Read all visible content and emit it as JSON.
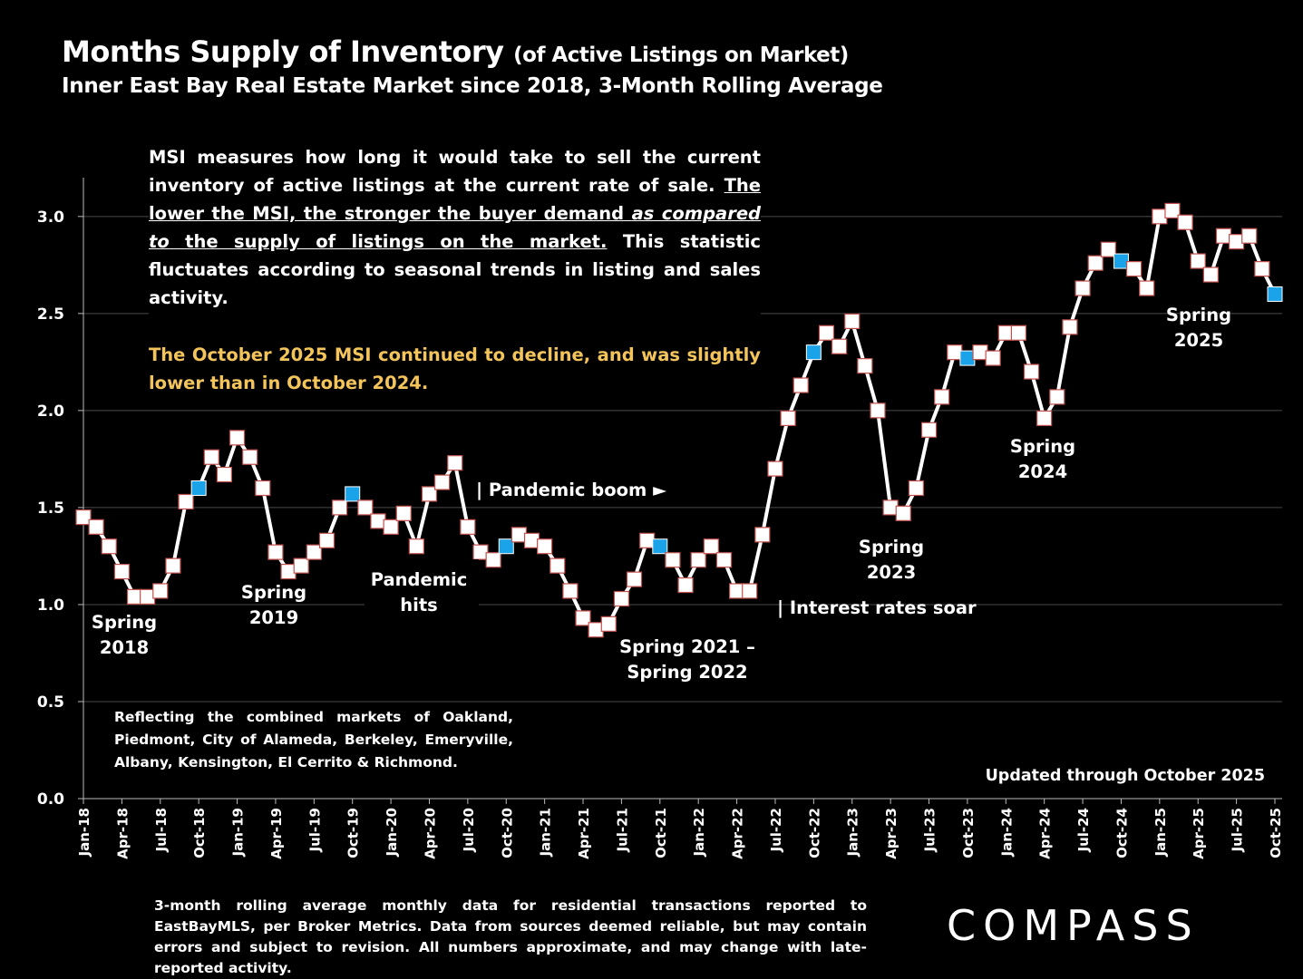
{
  "header": {
    "title": "Months Supply of Inventory",
    "title_sub": "(of Active Listings on Market)",
    "subtitle": "Inner East Bay Real Estate Market since 2018, 3-Month Rolling Average"
  },
  "note": {
    "p1_a": "MSI measures how long it would take to sell the current inventory of active listings at the current rate of sale. ",
    "p1_u1": "The lower the MSI, the stronger the buyer demand ",
    "p1_u_italic": "as compared to",
    "p1_u2": " the supply of listings on the market.",
    "p1_b": " This statistic fluctuates according to seasonal trends in listing and sales activity.",
    "highlight": "The October 2025 MSI continued to decline, and was slightly lower than in October 2024."
  },
  "markets_note": "Reflecting the combined markets of Oakland, Piedmont, City of Alameda, Berkeley, Emeryville, Albany, Kensington, El Cerrito & Richmond.",
  "updated": "Updated through October 2025",
  "footnote": "3-month rolling average monthly data for residential transactions reported to EastBayMLS, per Broker Metrics. Data from sources deemed reliable, but may contain errors and subject to revision. All numbers approximate, and may change with late-reported activity.",
  "logo": "COMPASS",
  "colors": {
    "background": "#000000",
    "line": "#ffffff",
    "marker_fill": "#ffffff",
    "marker_edge": "#c0504d",
    "october_marker": "#1aa3e8",
    "highlight_text": "#f2c45a"
  },
  "chart_data": {
    "type": "line",
    "ylim": [
      0,
      3.2
    ],
    "yticks": [
      "0.0",
      "0.5",
      "1.0",
      "1.5",
      "2.0",
      "2.5",
      "3.0"
    ],
    "grid": true,
    "x_tick_labels": [
      "Jan-18",
      "Apr-18",
      "Jul-18",
      "Oct-18",
      "Jan-19",
      "Apr-19",
      "Jul-19",
      "Oct-19",
      "Jan-20",
      "Apr-20",
      "Jul-20",
      "Oct-20",
      "Jan-21",
      "Apr-21",
      "Jul-21",
      "Oct-21",
      "Jan-22",
      "Apr-22",
      "Jul-22",
      "Oct-22",
      "Jan-23",
      "Apr-23",
      "Jul-23",
      "Oct-23",
      "Jan-24",
      "Apr-24",
      "Jul-24",
      "Oct-24",
      "Jan-25",
      "Apr-25",
      "Jul-25",
      "Oct-25"
    ],
    "series": [
      {
        "values": [
          1.45,
          1.4,
          1.3,
          1.17,
          1.04,
          1.04,
          1.07,
          1.2,
          1.53,
          1.6,
          1.76,
          1.67,
          1.86,
          1.76,
          1.6,
          1.27,
          1.17,
          1.2,
          1.27,
          1.33,
          1.5,
          1.57,
          1.5,
          1.43,
          1.4,
          1.47,
          1.3,
          1.57,
          1.63,
          1.73,
          1.4,
          1.27,
          1.23,
          1.3,
          1.36,
          1.33,
          1.3,
          1.2,
          1.07,
          0.93,
          0.87,
          0.9,
          1.03,
          1.13,
          1.33,
          1.3,
          1.23,
          1.1,
          1.23,
          1.3,
          1.23,
          1.07,
          1.07,
          1.36,
          1.7,
          1.96,
          2.13,
          2.3,
          2.4,
          2.33,
          2.46,
          2.23,
          2.0,
          1.5,
          1.47,
          1.6,
          1.9,
          2.07,
          2.3,
          2.27,
          2.3,
          2.27,
          2.4,
          2.4,
          2.2,
          1.96,
          2.07,
          2.43,
          2.63,
          2.76,
          2.83,
          2.77,
          2.73,
          2.63,
          3.0,
          3.03,
          2.97,
          2.77,
          2.7,
          2.9,
          2.87,
          2.9,
          2.73,
          2.6
        ],
        "highlight_months": [
          "Oct-18",
          "Oct-19",
          "Oct-20",
          "Oct-21",
          "Oct-22",
          "Oct-23",
          "Oct-24",
          "Oct-25"
        ]
      }
    ],
    "annotations": [
      "Spring\n2018",
      "Spring\n2019",
      "Pandemic\nhits",
      "| Pandemic boom ►",
      "Spring 2021 –\nSpring 2022",
      "| Interest rates soar",
      "Spring\n2023",
      "Spring\n2024",
      "Spring\n2025"
    ]
  }
}
